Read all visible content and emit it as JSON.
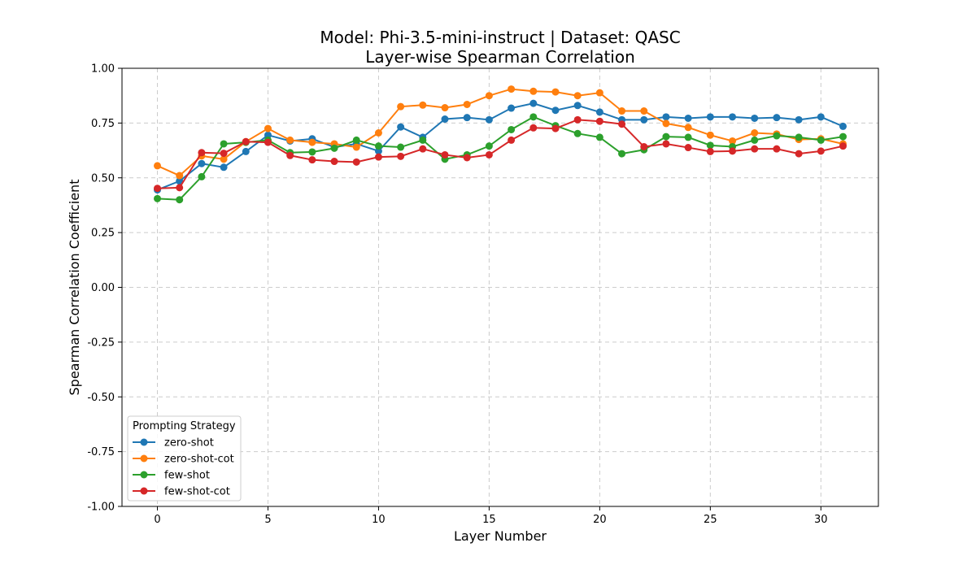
{
  "chart_data": {
    "type": "line",
    "title": "Model: Phi-3.5-mini-instruct | Dataset: QASC",
    "subtitle": "Layer-wise Spearman Correlation",
    "xlabel": "Layer Number",
    "ylabel": "Spearman Correlation Coefficient",
    "xlim": [
      -1.6,
      32.6
    ],
    "ylim": [
      -1.0,
      1.0
    ],
    "xticks": [
      0,
      5,
      10,
      15,
      20,
      25,
      30
    ],
    "xtick_labels": [
      "0",
      "5",
      "10",
      "15",
      "20",
      "25",
      "30"
    ],
    "yticks": [
      -1.0,
      -0.75,
      -0.5,
      -0.25,
      0.0,
      0.25,
      0.5,
      0.75,
      1.0
    ],
    "ytick_labels": [
      "-1.00",
      "-0.75",
      "-0.50",
      "-0.25",
      "0.00",
      "0.25",
      "0.50",
      "0.75",
      "1.00"
    ],
    "grid": true,
    "legend_title": "Prompting Strategy",
    "legend_position": "lower-left",
    "x": [
      0,
      1,
      2,
      3,
      4,
      5,
      6,
      7,
      8,
      9,
      10,
      11,
      12,
      13,
      14,
      15,
      16,
      17,
      18,
      19,
      20,
      21,
      22,
      23,
      24,
      25,
      26,
      27,
      28,
      29,
      30,
      31
    ],
    "series": [
      {
        "name": "zero-shot",
        "color": "#1f77b4",
        "values": [
          0.445,
          0.485,
          0.565,
          0.548,
          0.62,
          0.695,
          0.668,
          0.678,
          0.64,
          0.655,
          0.622,
          0.732,
          0.685,
          0.768,
          0.775,
          0.765,
          0.818,
          0.84,
          0.808,
          0.83,
          0.8,
          0.765,
          0.765,
          0.778,
          0.772,
          0.778,
          0.778,
          0.772,
          0.775,
          0.765,
          0.778,
          0.735
        ]
      },
      {
        "name": "zero-shot-cot",
        "color": "#ff7f0e",
        "values": [
          0.555,
          0.51,
          0.6,
          0.585,
          0.665,
          0.725,
          0.672,
          0.662,
          0.655,
          0.64,
          0.705,
          0.825,
          0.832,
          0.82,
          0.835,
          0.875,
          0.905,
          0.895,
          0.892,
          0.875,
          0.888,
          0.805,
          0.805,
          0.748,
          0.73,
          0.695,
          0.668,
          0.705,
          0.7,
          0.675,
          0.678,
          0.655
        ]
      },
      {
        "name": "few-shot",
        "color": "#2ca02c",
        "values": [
          0.405,
          0.4,
          0.505,
          0.655,
          0.662,
          0.672,
          0.615,
          0.618,
          0.635,
          0.672,
          0.645,
          0.64,
          0.672,
          0.585,
          0.605,
          0.645,
          0.72,
          0.778,
          0.738,
          0.702,
          0.685,
          0.61,
          0.628,
          0.688,
          0.685,
          0.648,
          0.642,
          0.672,
          0.692,
          0.685,
          0.672,
          0.688
        ]
      },
      {
        "name": "few-shot-cot",
        "color": "#d62728",
        "values": [
          0.452,
          0.455,
          0.615,
          0.612,
          0.665,
          0.662,
          0.602,
          0.582,
          0.575,
          0.572,
          0.595,
          0.598,
          0.632,
          0.605,
          0.592,
          0.605,
          0.672,
          0.728,
          0.725,
          0.765,
          0.758,
          0.745,
          0.642,
          0.655,
          0.638,
          0.62,
          0.622,
          0.632,
          0.632,
          0.61,
          0.622,
          0.645
        ]
      }
    ]
  }
}
